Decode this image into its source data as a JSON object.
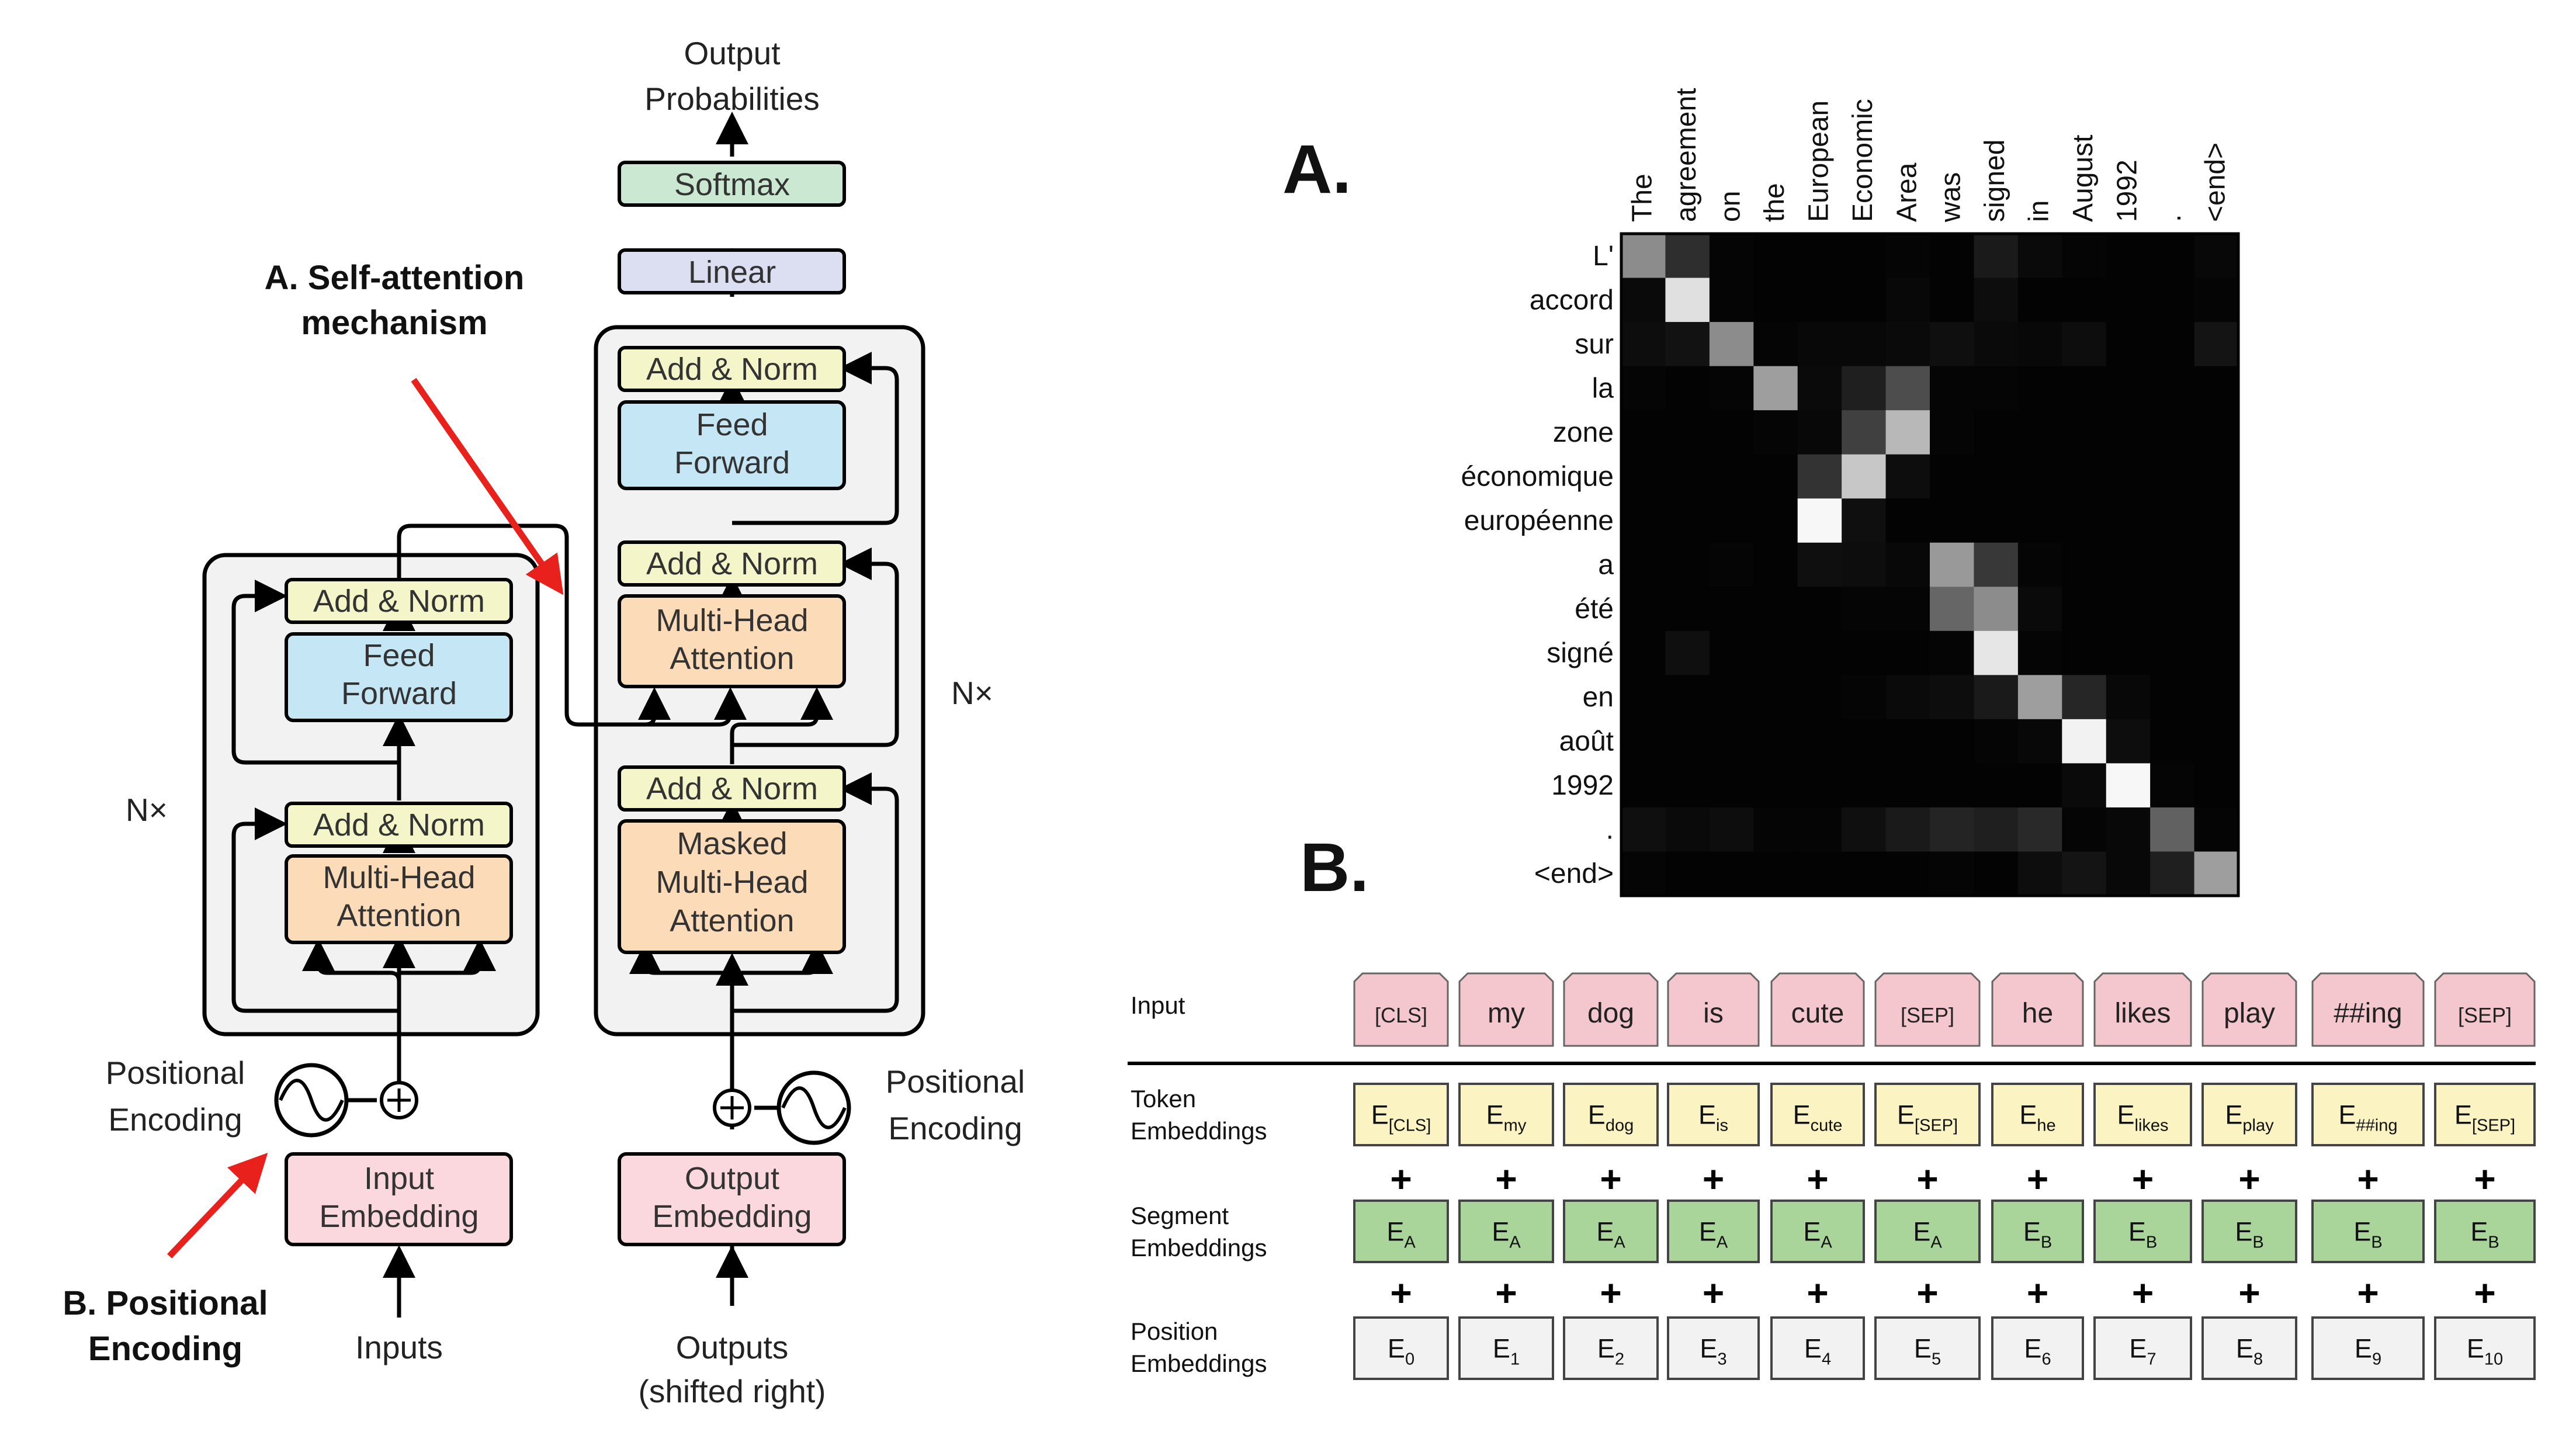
{
  "colors": {
    "block_bg": "#f2f2f2",
    "add_norm": "#f4f6c9",
    "feed_forward": "#c5e6f5",
    "attention": "#fcdcb8",
    "embedding": "#fad8dd",
    "linear": "#dcdff2",
    "softmax": "#cbe8d2",
    "arrow_red": "#e8211c",
    "token_pink": "#f4c6cd",
    "token_emb": "#fbf3c2",
    "segment_emb": "#a9d59a",
    "position_emb": "#f2f2f2"
  },
  "transformer": {
    "output_probs_line1": "Output",
    "output_probs_line2": "Probabilities",
    "softmax": "Softmax",
    "linear": "Linear",
    "add_norm": "Add & Norm",
    "feed_forward_line1": "Feed",
    "feed_forward_line2": "Forward",
    "mha_line1": "Multi-Head",
    "mha_line2": "Attention",
    "masked_line1": "Masked",
    "masked_line2": "Multi-Head",
    "masked_line3": "Attention",
    "nx": "N×",
    "pos_enc_line1": "Positional",
    "pos_enc_line2": "Encoding",
    "input_emb_line1": "Input",
    "input_emb_line2": "Embedding",
    "output_emb_line1": "Output",
    "output_emb_line2": "Embedding",
    "inputs": "Inputs",
    "outputs_line1": "Outputs",
    "outputs_line2": "(shifted right)"
  },
  "annotations": {
    "a_line1": "A. Self-attention",
    "a_line2": "mechanism",
    "b_line1": "B. Positional",
    "b_line2": "Encoding",
    "panel_a": "A.",
    "panel_b": "B."
  },
  "attention_matrix": {
    "columns": [
      "The",
      "agreement",
      "on",
      "the",
      "European",
      "Economic",
      "Area",
      "was",
      "signed",
      "in",
      "August",
      "1992",
      ".",
      "<end>"
    ],
    "rows": [
      "L'",
      "accord",
      "sur",
      "la",
      "zone",
      "économique",
      "européenne",
      "a",
      "été",
      "signé",
      "en",
      "août",
      "1992",
      ".",
      "<end>"
    ],
    "values": [
      [
        0.55,
        0.18,
        0.02,
        0.01,
        0.01,
        0.01,
        0.02,
        0.01,
        0.1,
        0.04,
        0.02,
        0.01,
        0.01,
        0.03
      ],
      [
        0.04,
        0.88,
        0.02,
        0.01,
        0.01,
        0.01,
        0.03,
        0.01,
        0.05,
        0.01,
        0.01,
        0.01,
        0.01,
        0.02
      ],
      [
        0.05,
        0.07,
        0.55,
        0.02,
        0.03,
        0.03,
        0.04,
        0.06,
        0.04,
        0.03,
        0.05,
        0.01,
        0.01,
        0.08
      ],
      [
        0.02,
        0.01,
        0.02,
        0.62,
        0.04,
        0.12,
        0.3,
        0.02,
        0.02,
        0.01,
        0.01,
        0.01,
        0.01,
        0.01
      ],
      [
        0.01,
        0.01,
        0.01,
        0.02,
        0.03,
        0.25,
        0.72,
        0.02,
        0.01,
        0.01,
        0.01,
        0.01,
        0.01,
        0.01
      ],
      [
        0.01,
        0.01,
        0.01,
        0.01,
        0.2,
        0.78,
        0.05,
        0.01,
        0.01,
        0.01,
        0.01,
        0.01,
        0.01,
        0.01
      ],
      [
        0.01,
        0.01,
        0.01,
        0.01,
        0.97,
        0.06,
        0.01,
        0.01,
        0.01,
        0.01,
        0.01,
        0.01,
        0.01,
        0.01
      ],
      [
        0.01,
        0.01,
        0.02,
        0.01,
        0.06,
        0.05,
        0.03,
        0.6,
        0.22,
        0.02,
        0.01,
        0.01,
        0.01,
        0.01
      ],
      [
        0.01,
        0.01,
        0.01,
        0.01,
        0.01,
        0.02,
        0.02,
        0.4,
        0.55,
        0.04,
        0.01,
        0.01,
        0.01,
        0.01
      ],
      [
        0.01,
        0.06,
        0.01,
        0.01,
        0.01,
        0.01,
        0.01,
        0.02,
        0.9,
        0.02,
        0.01,
        0.01,
        0.01,
        0.01
      ],
      [
        0.01,
        0.01,
        0.01,
        0.01,
        0.01,
        0.02,
        0.04,
        0.05,
        0.1,
        0.62,
        0.15,
        0.03,
        0.01,
        0.01
      ],
      [
        0.01,
        0.01,
        0.01,
        0.01,
        0.01,
        0.01,
        0.01,
        0.01,
        0.02,
        0.03,
        0.95,
        0.05,
        0.01,
        0.01
      ],
      [
        0.01,
        0.01,
        0.01,
        0.01,
        0.01,
        0.01,
        0.01,
        0.01,
        0.01,
        0.01,
        0.04,
        0.97,
        0.02,
        0.01
      ],
      [
        0.06,
        0.04,
        0.05,
        0.02,
        0.02,
        0.06,
        0.1,
        0.14,
        0.12,
        0.16,
        0.02,
        0.03,
        0.38,
        0.02
      ],
      [
        0.02,
        0.01,
        0.01,
        0.01,
        0.01,
        0.01,
        0.01,
        0.02,
        0.01,
        0.05,
        0.08,
        0.03,
        0.12,
        0.62
      ]
    ]
  },
  "bert": {
    "row_labels": {
      "input": "Input",
      "token_line1": "Token",
      "token_line2": "Embeddings",
      "segment_line1": "Segment",
      "segment_line2": "Embeddings",
      "position_line1": "Position",
      "position_line2": "Embeddings"
    },
    "plus": "+",
    "tokens": [
      "[CLS]",
      "my",
      "dog",
      "is",
      "cute",
      "[SEP]",
      "he",
      "likes",
      "play",
      "##ing",
      "[SEP]"
    ],
    "token_embeddings": [
      {
        "base": "E",
        "sub": "[CLS]"
      },
      {
        "base": "E",
        "sub": "my"
      },
      {
        "base": "E",
        "sub": "dog"
      },
      {
        "base": "E",
        "sub": "is"
      },
      {
        "base": "E",
        "sub": "cute"
      },
      {
        "base": "E",
        "sub": "[SEP]"
      },
      {
        "base": "E",
        "sub": "he"
      },
      {
        "base": "E",
        "sub": "likes"
      },
      {
        "base": "E",
        "sub": "play"
      },
      {
        "base": "E",
        "sub": "##ing"
      },
      {
        "base": "E",
        "sub": "[SEP]"
      }
    ],
    "segment_embeddings": [
      {
        "base": "E",
        "sub": "A"
      },
      {
        "base": "E",
        "sub": "A"
      },
      {
        "base": "E",
        "sub": "A"
      },
      {
        "base": "E",
        "sub": "A"
      },
      {
        "base": "E",
        "sub": "A"
      },
      {
        "base": "E",
        "sub": "A"
      },
      {
        "base": "E",
        "sub": "B"
      },
      {
        "base": "E",
        "sub": "B"
      },
      {
        "base": "E",
        "sub": "B"
      },
      {
        "base": "E",
        "sub": "B"
      },
      {
        "base": "E",
        "sub": "B"
      }
    ],
    "position_embeddings": [
      {
        "base": "E",
        "sub": "0"
      },
      {
        "base": "E",
        "sub": "1"
      },
      {
        "base": "E",
        "sub": "2"
      },
      {
        "base": "E",
        "sub": "3"
      },
      {
        "base": "E",
        "sub": "4"
      },
      {
        "base": "E",
        "sub": "5"
      },
      {
        "base": "E",
        "sub": "6"
      },
      {
        "base": "E",
        "sub": "7"
      },
      {
        "base": "E",
        "sub": "8"
      },
      {
        "base": "E",
        "sub": "9"
      },
      {
        "base": "E",
        "sub": "10"
      }
    ]
  }
}
